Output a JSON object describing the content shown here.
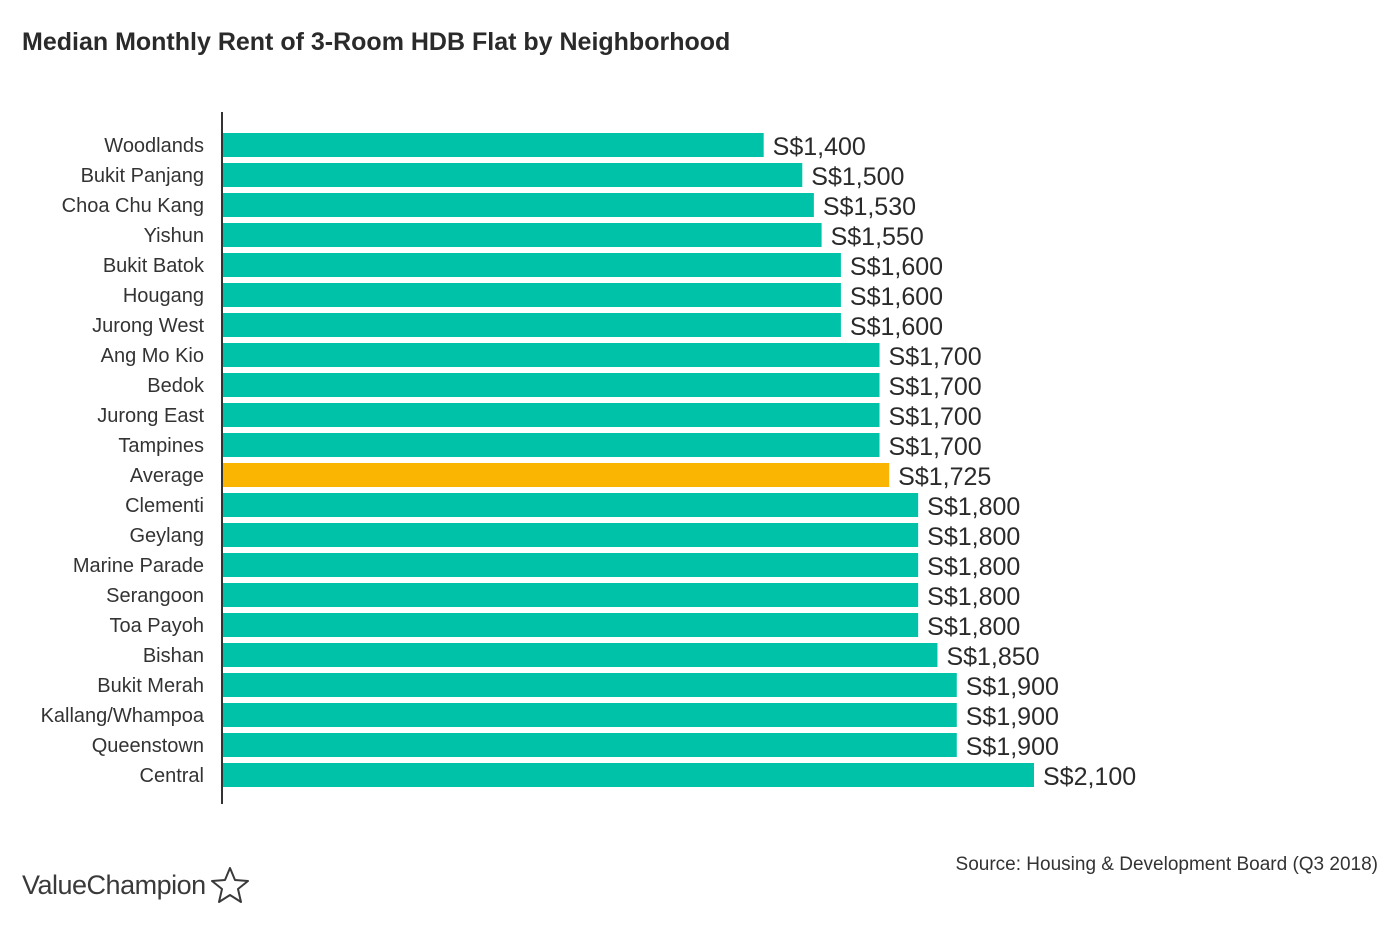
{
  "title": "Median Monthly Rent of 3-Room HDB Flat by Neighborhood",
  "source": "Source: Housing & Development Board (Q3 2018)",
  "logo": {
    "text": "ValueChampion",
    "icon": "star-outline-icon"
  },
  "colors": {
    "bar": "#00c2a8",
    "highlight": "#f9b502",
    "axis": "#333333",
    "text": "#333333"
  },
  "chart_data": {
    "type": "bar",
    "orientation": "horizontal",
    "title": "Median Monthly Rent of 3-Room HDB Flat by Neighborhood",
    "xlabel": "",
    "ylabel": "",
    "xlim": [
      0,
      2100
    ],
    "grid": false,
    "categories": [
      "Woodlands",
      "Bukit Panjang",
      "Choa Chu Kang",
      "Yishun",
      "Bukit Batok",
      "Hougang",
      "Jurong West",
      "Ang Mo Kio",
      "Bedok",
      "Jurong East",
      "Tampines",
      "Average",
      "Clementi",
      "Geylang",
      "Marine Parade",
      "Serangoon",
      "Toa Payoh",
      "Bishan",
      "Bukit Merah",
      "Kallang/Whampoa",
      "Queenstown",
      "Central"
    ],
    "values": [
      1400,
      1500,
      1530,
      1550,
      1600,
      1600,
      1600,
      1700,
      1700,
      1700,
      1700,
      1725,
      1800,
      1800,
      1800,
      1800,
      1800,
      1850,
      1900,
      1900,
      1900,
      2100
    ],
    "labels": [
      "S$1,400",
      "S$1,500",
      "S$1,530",
      "S$1,550",
      "S$1,600",
      "S$1,600",
      "S$1,600",
      "S$1,700",
      "S$1,700",
      "S$1,700",
      "S$1,700",
      "S$1,725",
      "S$1,800",
      "S$1,800",
      "S$1,800",
      "S$1,800",
      "S$1,800",
      "S$1,850",
      "S$1,900",
      "S$1,900",
      "S$1,900",
      "S$2,100"
    ],
    "highlight": "Average"
  }
}
